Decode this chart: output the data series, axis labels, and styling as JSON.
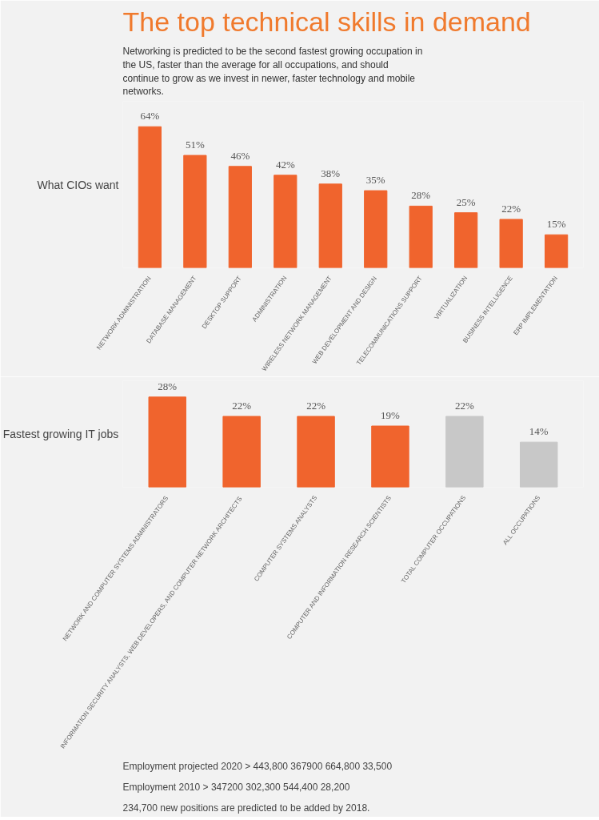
{
  "chart_data": [
    {
      "type": "bar",
      "title": "The top technical skills in demand",
      "subtitle": "Networking is predicted to be the second fastest growing occupation in the US, faster than the average for all occupations, and should continue to grow as we invest in newer, faster technology and mobile networks.",
      "ylabel": "What CIOs want",
      "categories": [
        "NETWORK ADMINISTRATION",
        "DATABASE MANAGEMENT",
        "DESKTOP SUPPORT",
        "ADMINISTRATION",
        "WIRELESS NETWORK MANAGEMENT",
        "WEB DEVELOPMENT AND DESIGN",
        "TELECOMMUNICATIONS SUPPORT",
        "VIRTUALIZATION",
        "BUSINESS INTELLIGENCE",
        "ERP IMPLEMENTATION"
      ],
      "values": [
        64,
        51,
        46,
        42,
        38,
        35,
        28,
        25,
        22,
        15
      ],
      "color": "#f0642d",
      "value_labels": [
        "64%",
        "51%",
        "46%",
        "42%",
        "38%",
        "35%",
        "28%",
        "25%",
        "22%",
        "15%"
      ],
      "grid": false
    },
    {
      "type": "bar",
      "ylabel": "Fastest growing IT jobs",
      "categories": [
        "NETWORK AND COMPUTER SYSTEMS ADMINISTRATORS",
        "INFORMATION SECURITY ANALYSTS, WEB DEVELOPERS, AND COMPUTER NETWORK ARCHITECTS",
        "COMPUTER SYSTEMS ANALYSTS",
        "COMPUTER AND INFORMATION RESEARCH SCIENTISTS",
        "TOTAL COMPUTER OCCUPATIONS",
        "ALL OCCUPATIONS"
      ],
      "values": [
        28,
        22,
        22,
        19,
        22,
        14
      ],
      "colors": [
        "#f0642d",
        "#f0642d",
        "#f0642d",
        "#f0642d",
        "#c8c8c8",
        "#c8c8c8"
      ],
      "value_labels": [
        "28%",
        "22%",
        "22%",
        "19%",
        "22%",
        "14%"
      ],
      "grid": false,
      "annotations": [
        "Employment projected 2020 >   443,800   367900   664,800   33,500",
        "Employment 2010 >   347200   302,300   544,400   28,200",
        "234,700 new positions are predicted to be added by 2018."
      ]
    }
  ]
}
